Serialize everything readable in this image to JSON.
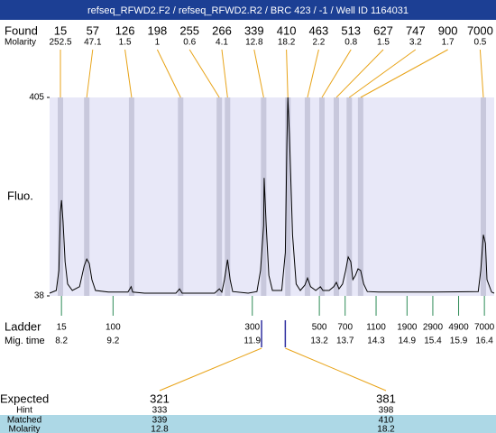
{
  "header": {
    "title": "refseq_RFWD2.F2 / refseq_RFWD2.R2 / BRC 423 / -1 / Well ID 1164031"
  },
  "chart_data": {
    "type": "line",
    "ylabel": "Fluo.",
    "ylim": [
      38,
      405
    ],
    "yticks": [
      38,
      405
    ],
    "xlim": [
      7.97,
      16.59
    ],
    "series": [
      {
        "color": "#000000",
        "x": [
          7.97,
          8.1,
          8.15,
          8.18,
          8.2,
          8.23,
          8.27,
          8.32,
          8.41,
          8.55,
          8.64,
          8.69,
          8.74,
          8.79,
          8.86,
          9.11,
          9.49,
          9.55,
          9.58,
          9.81,
          10.42,
          10.49,
          10.54,
          11.17,
          11.26,
          11.31,
          11.36,
          11.42,
          11.47,
          11.52,
          11.82,
          11.99,
          12.06,
          12.12,
          12.13,
          12.17,
          12.22,
          12.29,
          12.47,
          12.54,
          12.57,
          12.59,
          12.62,
          12.68,
          12.75,
          12.83,
          12.92,
          12.97,
          13.03,
          13.13,
          13.22,
          13.27,
          13.39,
          13.48,
          13.53,
          13.58,
          13.65,
          13.71,
          13.76,
          13.81,
          13.85,
          13.9,
          13.95,
          14.0,
          14.06,
          14.13,
          14.35,
          15.4,
          16.28,
          16.33,
          16.38,
          16.42,
          16.45,
          16.54,
          16.59
        ],
        "values": [
          43,
          48,
          85,
          193,
          215,
          176,
          101,
          60,
          48,
          55,
          93,
          106,
          98,
          68,
          48,
          45,
          45,
          55,
          45,
          43,
          43,
          51,
          43,
          43,
          51,
          45,
          68,
          105,
          68,
          46,
          43,
          46,
          85,
          168,
          256,
          168,
          76,
          48,
          48,
          118,
          318,
          405,
          338,
          151,
          60,
          48,
          58,
          71,
          55,
          48,
          55,
          48,
          48,
          55,
          63,
          51,
          60,
          85,
          110,
          101,
          68,
          76,
          88,
          85,
          60,
          46,
          45,
          45,
          46,
          85,
          151,
          135,
          68,
          45,
          43
        ]
      }
    ],
    "found": {
      "label": "Found",
      "sizes": [
        15,
        57,
        126,
        198,
        255,
        266,
        339,
        410,
        463,
        513,
        627,
        747,
        900,
        7000
      ],
      "molarity_label": "Molarity",
      "molarity": [
        252.5,
        47.1,
        1.5,
        1,
        0.6,
        4.1,
        12.8,
        18.2,
        2.2,
        0.8,
        1.5,
        3.2,
        1.7,
        0.5
      ],
      "times": [
        8.18,
        8.69,
        9.56,
        10.51,
        11.26,
        11.42,
        12.12,
        12.59,
        12.97,
        13.25,
        13.53,
        13.78,
        14.0,
        16.38
      ],
      "line_color": "#e8a317",
      "band_color": "#c8c8dc"
    },
    "ladder": {
      "label": "Ladder",
      "sizes": [
        15,
        100,
        300,
        500,
        700,
        1100,
        1900,
        2900,
        4900,
        7000
      ],
      "time_label": "Mig. time",
      "times": [
        8.2,
        9.2,
        11.9,
        13.2,
        13.7,
        14.3,
        14.9,
        15.4,
        15.9,
        16.4
      ],
      "color": "#2e8b57"
    },
    "expected": {
      "label": "Expected",
      "values": [
        321,
        381
      ],
      "hint_label": "Hint",
      "hint": [
        333,
        398
      ],
      "matched_label": "Matched",
      "matched": [
        339,
        410
      ],
      "molarity_label": "Molarity",
      "molarity": [
        12.8,
        18.2
      ],
      "times": [
        12.08,
        12.54
      ],
      "marker_color": "#3030a0",
      "row_color": "#add8e6"
    }
  }
}
